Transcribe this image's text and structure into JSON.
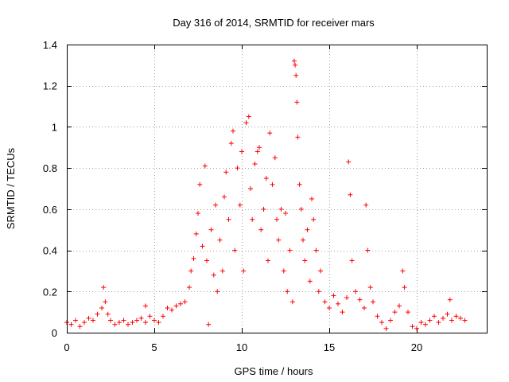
{
  "chart_data": {
    "type": "scatter",
    "title": "Day 316 of 2014, SRMTID for receiver mars",
    "xlabel": "GPS time / hours",
    "ylabel": "SRMTID / TECUs",
    "xlim": [
      0,
      24
    ],
    "ylim": [
      0,
      1.4
    ],
    "xticks": [
      0,
      5,
      10,
      15,
      20
    ],
    "yticks": [
      0,
      0.2,
      0.4,
      0.6,
      0.8,
      1,
      1.2,
      1.4
    ],
    "ytick_labels": [
      "0",
      "0.2",
      "0.4",
      "0.6",
      "0.8",
      "1",
      "1.2",
      "1.4"
    ],
    "grid": true,
    "marker": "+",
    "color": "#ff0000",
    "series": [
      {
        "name": "SRMTID",
        "points": [
          [
            0.0,
            0.05
          ],
          [
            0.25,
            0.04
          ],
          [
            0.5,
            0.06
          ],
          [
            0.75,
            0.03
          ],
          [
            1.0,
            0.05
          ],
          [
            1.25,
            0.07
          ],
          [
            1.5,
            0.06
          ],
          [
            1.75,
            0.09
          ],
          [
            2.0,
            0.12
          ],
          [
            2.1,
            0.22
          ],
          [
            2.2,
            0.15
          ],
          [
            2.35,
            0.09
          ],
          [
            2.5,
            0.06
          ],
          [
            2.75,
            0.04
          ],
          [
            3.0,
            0.05
          ],
          [
            3.25,
            0.06
          ],
          [
            3.5,
            0.04
          ],
          [
            3.75,
            0.05
          ],
          [
            4.0,
            0.06
          ],
          [
            4.25,
            0.07
          ],
          [
            4.5,
            0.05
          ],
          [
            4.75,
            0.08
          ],
          [
            4.5,
            0.13
          ],
          [
            5.0,
            0.06
          ],
          [
            5.25,
            0.05
          ],
          [
            5.5,
            0.08
          ],
          [
            5.75,
            0.12
          ],
          [
            6.0,
            0.11
          ],
          [
            6.25,
            0.13
          ],
          [
            6.5,
            0.14
          ],
          [
            6.75,
            0.15
          ],
          [
            7.0,
            0.22
          ],
          [
            7.1,
            0.3
          ],
          [
            7.25,
            0.36
          ],
          [
            7.4,
            0.48
          ],
          [
            7.5,
            0.58
          ],
          [
            7.6,
            0.72
          ],
          [
            7.75,
            0.42
          ],
          [
            7.9,
            0.81
          ],
          [
            8.0,
            0.35
          ],
          [
            8.1,
            0.04
          ],
          [
            8.25,
            0.5
          ],
          [
            8.4,
            0.28
          ],
          [
            8.5,
            0.62
          ],
          [
            8.6,
            0.2
          ],
          [
            8.75,
            0.45
          ],
          [
            8.9,
            0.3
          ],
          [
            9.0,
            0.66
          ],
          [
            9.1,
            0.78
          ],
          [
            9.25,
            0.55
          ],
          [
            9.4,
            0.92
          ],
          [
            9.5,
            0.98
          ],
          [
            9.6,
            0.4
          ],
          [
            9.75,
            0.8
          ],
          [
            9.9,
            0.62
          ],
          [
            10.0,
            0.88
          ],
          [
            10.1,
            0.3
          ],
          [
            10.25,
            1.02
          ],
          [
            10.4,
            1.05
          ],
          [
            10.5,
            0.7
          ],
          [
            10.6,
            0.55
          ],
          [
            10.75,
            0.82
          ],
          [
            10.9,
            0.88
          ],
          [
            11.0,
            0.9
          ],
          [
            11.1,
            0.5
          ],
          [
            11.25,
            0.6
          ],
          [
            11.4,
            0.75
          ],
          [
            11.5,
            0.35
          ],
          [
            11.6,
            0.97
          ],
          [
            11.75,
            0.72
          ],
          [
            11.9,
            0.85
          ],
          [
            12.0,
            0.55
          ],
          [
            12.1,
            0.45
          ],
          [
            12.25,
            0.6
          ],
          [
            12.4,
            0.3
          ],
          [
            12.5,
            0.58
          ],
          [
            12.6,
            0.2
          ],
          [
            12.75,
            0.4
          ],
          [
            12.9,
            0.15
          ],
          [
            13.0,
            1.32
          ],
          [
            13.05,
            1.3
          ],
          [
            13.1,
            1.25
          ],
          [
            13.15,
            1.12
          ],
          [
            13.2,
            0.95
          ],
          [
            13.3,
            0.72
          ],
          [
            13.4,
            0.6
          ],
          [
            13.5,
            0.45
          ],
          [
            13.6,
            0.35
          ],
          [
            13.75,
            0.5
          ],
          [
            13.9,
            0.25
          ],
          [
            14.0,
            0.65
          ],
          [
            14.1,
            0.55
          ],
          [
            14.25,
            0.4
          ],
          [
            14.4,
            0.2
          ],
          [
            14.5,
            0.3
          ],
          [
            14.75,
            0.15
          ],
          [
            15.0,
            0.12
          ],
          [
            15.25,
            0.18
          ],
          [
            15.5,
            0.14
          ],
          [
            15.75,
            0.1
          ],
          [
            16.0,
            0.17
          ],
          [
            16.1,
            0.83
          ],
          [
            16.2,
            0.67
          ],
          [
            16.3,
            0.35
          ],
          [
            16.5,
            0.2
          ],
          [
            16.75,
            0.16
          ],
          [
            17.0,
            0.12
          ],
          [
            17.1,
            0.62
          ],
          [
            17.2,
            0.4
          ],
          [
            17.35,
            0.22
          ],
          [
            17.5,
            0.15
          ],
          [
            17.75,
            0.08
          ],
          [
            18.0,
            0.05
          ],
          [
            18.25,
            0.02
          ],
          [
            18.5,
            0.06
          ],
          [
            18.75,
            0.1
          ],
          [
            19.0,
            0.13
          ],
          [
            19.2,
            0.3
          ],
          [
            19.3,
            0.22
          ],
          [
            19.5,
            0.1
          ],
          [
            19.75,
            0.03
          ],
          [
            20.0,
            0.02
          ],
          [
            20.25,
            0.05
          ],
          [
            20.5,
            0.04
          ],
          [
            20.75,
            0.06
          ],
          [
            21.0,
            0.08
          ],
          [
            21.25,
            0.05
          ],
          [
            21.5,
            0.07
          ],
          [
            21.75,
            0.09
          ],
          [
            21.9,
            0.16
          ],
          [
            22.0,
            0.06
          ],
          [
            22.25,
            0.08
          ],
          [
            22.5,
            0.07
          ],
          [
            22.75,
            0.06
          ]
        ]
      }
    ]
  }
}
